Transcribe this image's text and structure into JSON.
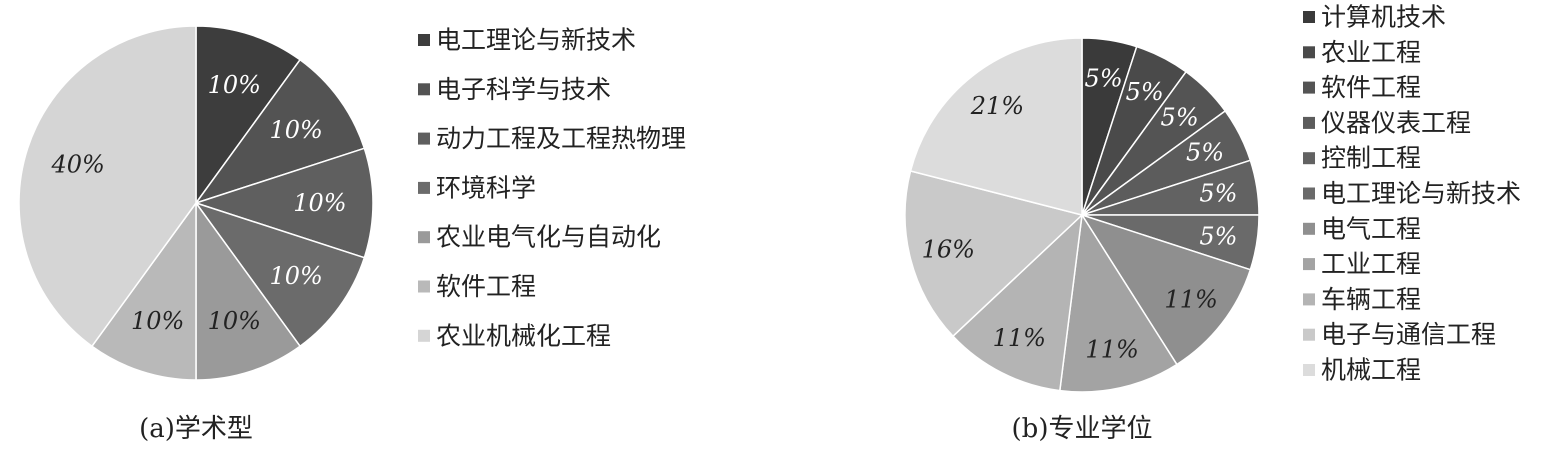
{
  "chart_data": [
    {
      "type": "pie",
      "caption": "(a)学术型",
      "categories": [
        "电工理论与新技术",
        "电子科学与技术",
        "动力工程及工程热物理",
        "环境科学",
        "农业电气化与自动化",
        "软件工程",
        "农业机械化工程"
      ],
      "values": [
        10,
        10,
        10,
        10,
        10,
        10,
        40
      ],
      "labels": [
        "10%",
        "10%",
        "10%",
        "10%",
        "10%",
        "10%",
        "40%"
      ],
      "colors": [
        "#3d3d3d",
        "#535353",
        "#5f5f5f",
        "#6b6b6b",
        "#9a9a9a",
        "#b9b9b9",
        "#d5d5d5"
      ],
      "label_colors": [
        "#ffffff",
        "#ffffff",
        "#ffffff",
        "#ffffff",
        "#222222",
        "#222222",
        "#222222"
      ],
      "legend_position": "right",
      "start": "12 o'clock",
      "direction": "clockwise"
    },
    {
      "type": "pie",
      "caption": "(b)专业学位",
      "categories": [
        "计算机技术",
        "农业工程",
        "软件工程",
        "仪器仪表工程",
        "控制工程",
        "电工理论与新技术",
        "电气工程",
        "工业工程",
        "车辆工程",
        "电子与通信工程",
        "机械工程"
      ],
      "values": [
        5,
        5,
        5,
        5,
        5,
        5,
        11,
        11,
        11,
        16,
        21
      ],
      "labels": [
        "5%",
        "5%",
        "5%",
        "5%",
        "5%",
        "5%",
        "11%",
        "11%",
        "11%",
        "16%",
        "21%"
      ],
      "colors": [
        "#3a3a3a",
        "#4a4a4a",
        "#545454",
        "#5c5c5c",
        "#626262",
        "#6a6a6a",
        "#8f8f8f",
        "#a3a3a3",
        "#b4b4b4",
        "#c9c9c9",
        "#dcdcdc"
      ],
      "label_colors": [
        "#ffffff",
        "#ffffff",
        "#ffffff",
        "#ffffff",
        "#ffffff",
        "#ffffff",
        "#222222",
        "#222222",
        "#222222",
        "#222222",
        "#222222"
      ],
      "legend_position": "right",
      "start": "12 o'clock",
      "direction": "clockwise"
    }
  ]
}
